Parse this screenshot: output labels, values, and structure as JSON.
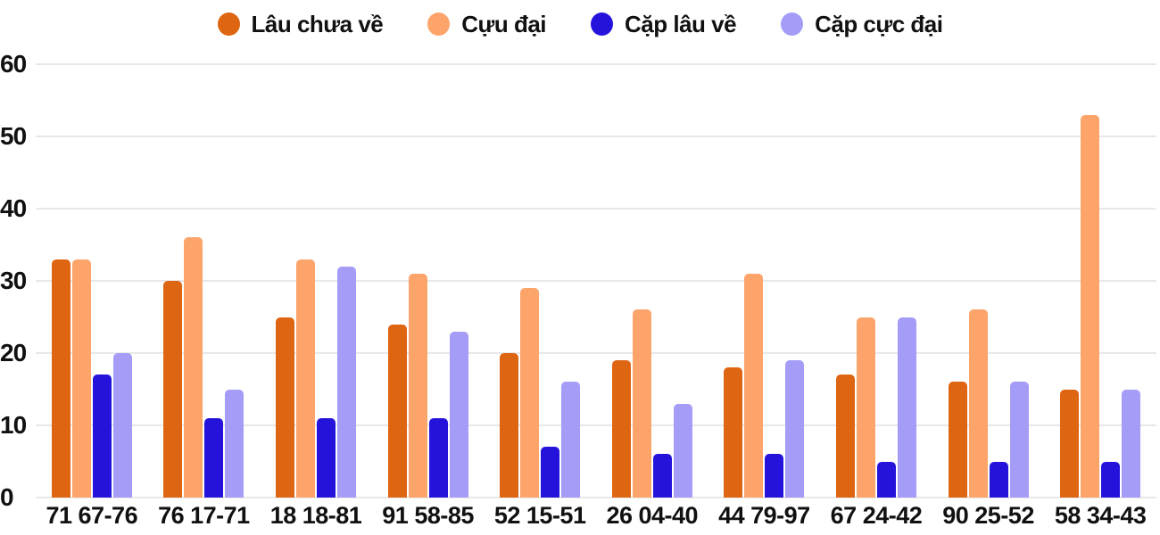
{
  "chart_data": {
    "type": "bar",
    "title": "",
    "xlabel": "",
    "ylabel": "",
    "categories": [
      "71 67-76",
      "76 17-71",
      "18 18-81",
      "91 58-85",
      "52 15-51",
      "26 04-40",
      "44 79-97",
      "67 24-42",
      "90 25-52",
      "58 34-43"
    ],
    "series": [
      {
        "name": "Lâu chưa về",
        "color": "#de6512",
        "values": [
          33,
          30,
          25,
          24,
          20,
          19,
          18,
          17,
          16,
          15
        ]
      },
      {
        "name": "Cựu đại",
        "color": "#fda46a",
        "values": [
          33,
          36,
          33,
          31,
          29,
          26,
          31,
          25,
          26,
          53
        ]
      },
      {
        "name": "Cặp lâu về",
        "color": "#2513dc",
        "values": [
          17,
          11,
          11,
          11,
          7,
          6,
          6,
          5,
          5,
          5
        ]
      },
      {
        "name": "Cặp cực đại",
        "color": "#a49cf7",
        "values": [
          20,
          15,
          32,
          23,
          16,
          13,
          19,
          25,
          16,
          15
        ]
      }
    ],
    "ylim": [
      0,
      60
    ],
    "yticks": [
      0,
      10,
      20,
      30,
      40,
      50,
      60
    ],
    "grid": true,
    "legend_position": "top",
    "gridline_color": "#e8e8e8",
    "text_color": "#111111",
    "background_color": "#ffffff"
  }
}
